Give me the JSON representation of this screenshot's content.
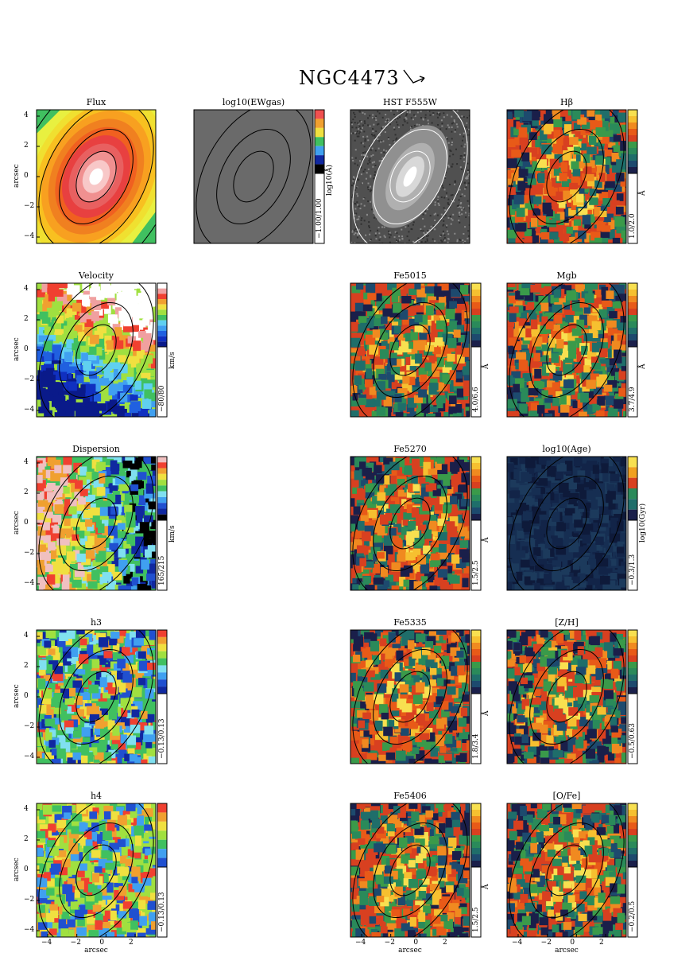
{
  "figure": {
    "title": "NGC4473",
    "panels": [
      {
        "id": "flux",
        "title": "Flux",
        "cmap": "flux",
        "row": 0,
        "col": 0,
        "ylabel": "arcsec",
        "cb_range": "",
        "cb_unit": ""
      },
      {
        "id": "ew",
        "title": "log10(EWgas)",
        "cmap": "grey",
        "row": 0,
        "col": 1,
        "ylabel": "",
        "cb_range": "−1.00/1.00",
        "cb_unit": "log10(Å)"
      },
      {
        "id": "hst",
        "title": "HST F555W",
        "cmap": "hst",
        "row": 0,
        "col": 2,
        "ylabel": "",
        "cb_range": "",
        "cb_unit": ""
      },
      {
        "id": "hbeta",
        "title": "Hβ",
        "cmap": "index",
        "row": 0,
        "col": 3,
        "ylabel": "",
        "cb_range": "1.0/2.0",
        "cb_unit": "Å"
      },
      {
        "id": "velocity",
        "title": "Velocity",
        "cmap": "vel",
        "row": 1,
        "col": 0,
        "ylabel": "arcsec",
        "cb_range": "−80/80",
        "cb_unit": "km/s"
      },
      {
        "id": "fe5015",
        "title": "Fe5015",
        "cmap": "index",
        "row": 1,
        "col": 2,
        "ylabel": "",
        "cb_range": "4.0/6.6",
        "cb_unit": "Å"
      },
      {
        "id": "mgb",
        "title": "Mgb",
        "cmap": "index",
        "row": 1,
        "col": 3,
        "ylabel": "",
        "cb_range": "3.7/4.9",
        "cb_unit": "Å"
      },
      {
        "id": "dispersion",
        "title": "Dispersion",
        "cmap": "disp",
        "row": 2,
        "col": 0,
        "ylabel": "arcsec",
        "cb_range": "165/215",
        "cb_unit": "km/s"
      },
      {
        "id": "fe5270",
        "title": "Fe5270",
        "cmap": "index",
        "row": 2,
        "col": 2,
        "ylabel": "",
        "cb_range": "1.5/2.5",
        "cb_unit": "Å"
      },
      {
        "id": "age",
        "title": "log10(Age)",
        "cmap": "age",
        "row": 2,
        "col": 3,
        "ylabel": "",
        "cb_range": "−0.3/1.3",
        "cb_unit": "log10(Gyr)"
      },
      {
        "id": "h3",
        "title": "h3",
        "cmap": "h3",
        "row": 3,
        "col": 0,
        "ylabel": "arcsec",
        "cb_range": "−0.13/0.13",
        "cb_unit": ""
      },
      {
        "id": "fe5335",
        "title": "Fe5335",
        "cmap": "index",
        "row": 3,
        "col": 2,
        "ylabel": "",
        "cb_range": "1.8/3.4",
        "cb_unit": "Å"
      },
      {
        "id": "zh",
        "title": "[Z/H]",
        "cmap": "index",
        "row": 3,
        "col": 3,
        "ylabel": "",
        "cb_range": "−0.5/0.63",
        "cb_unit": ""
      },
      {
        "id": "h4",
        "title": "h4",
        "cmap": "h4",
        "row": 4,
        "col": 0,
        "ylabel": "arcsec",
        "cb_range": "−0.13/0.13",
        "cb_unit": "",
        "xlabel": "arcsec"
      },
      {
        "id": "fe5406",
        "title": "Fe5406",
        "cmap": "index",
        "row": 4,
        "col": 2,
        "ylabel": "",
        "cb_range": "1.5/2.5",
        "cb_unit": "Å",
        "xlabel": "arcsec"
      },
      {
        "id": "ofe",
        "title": "[O/Fe]",
        "cmap": "index",
        "row": 4,
        "col": 3,
        "ylabel": "",
        "cb_range": "−0.2/0.5",
        "cb_unit": "",
        "xlabel": "arcsec"
      }
    ],
    "yticks": [
      "4",
      "2",
      "0",
      "−2",
      "−4"
    ],
    "xticks": [
      "−4",
      "−2",
      "0",
      "2"
    ]
  }
}
